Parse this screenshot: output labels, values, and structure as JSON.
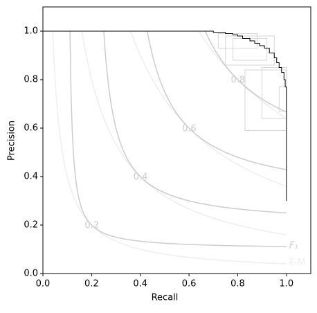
{
  "chart_data": {
    "type": "line",
    "xlabel": "Recall",
    "ylabel": "Precision",
    "xlim": [
      0,
      1.1
    ],
    "ylim": [
      0,
      1.1
    ],
    "xticks": [
      {
        "value": 0,
        "label": "0.0"
      },
      0.2,
      0.4,
      0.6,
      0.8,
      {
        "value": 1,
        "label": "1.0"
      }
    ],
    "yticks": [
      {
        "value": 0,
        "label": "0.0"
      },
      0.2,
      0.4,
      0.6,
      0.8,
      {
        "value": 1,
        "label": "1.0"
      }
    ],
    "iso_f1": {
      "name": "F₁",
      "color": "#cccccc",
      "levels": [
        0.2,
        0.4,
        0.6,
        0.8
      ]
    },
    "iso_fm": {
      "name": "F-M",
      "color": "#eeeeee",
      "levels": [
        0.2,
        0.4,
        0.6,
        0.8
      ]
    },
    "boxes": {
      "color": "#cccccc",
      "values": [
        [
          0.83,
          0.59,
          1.0,
          0.84
        ],
        [
          0.75,
          0.86,
          0.95,
          0.98
        ],
        [
          0.72,
          0.93,
          0.88,
          0.99
        ],
        [
          0.9,
          0.64,
          1.0,
          0.85
        ],
        [
          0.78,
          0.88,
          0.92,
          0.97
        ],
        [
          0.97,
          0.67,
          1.0,
          0.77
        ]
      ]
    },
    "series": [
      {
        "color": "#000000",
        "x": [
          0,
          0.67,
          0.7,
          0.75,
          0.78,
          0.8,
          0.82,
          0.85,
          0.87,
          0.89,
          0.91,
          0.93,
          0.95,
          0.96,
          0.97,
          0.98,
          0.99,
          0.995,
          1.0,
          1.0
        ],
        "values": [
          1,
          1,
          0.995,
          0.99,
          0.985,
          0.98,
          0.97,
          0.96,
          0.95,
          0.94,
          0.93,
          0.91,
          0.89,
          0.87,
          0.85,
          0.83,
          0.8,
          0.77,
          0.75,
          0.3
        ]
      }
    ]
  }
}
